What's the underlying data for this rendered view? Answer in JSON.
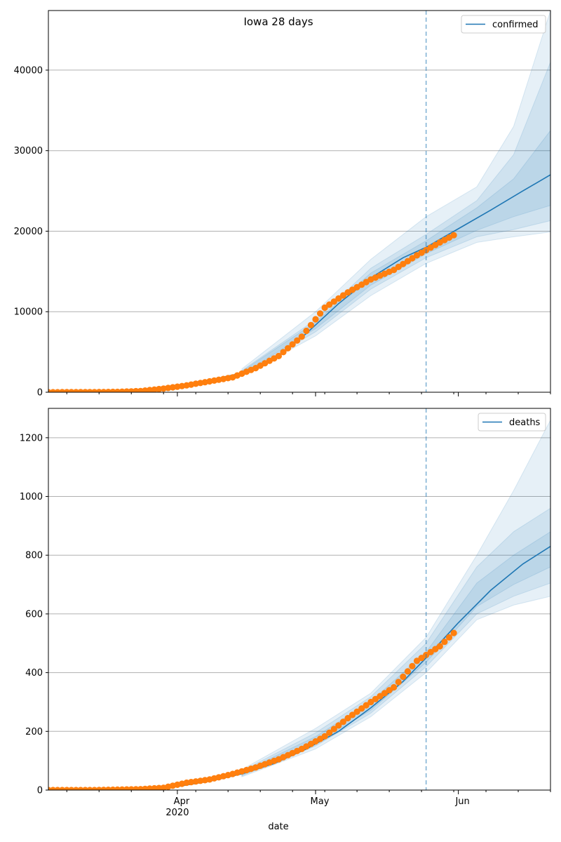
{
  "title": "Iowa 28 days",
  "colors": {
    "line": "#1f77b4",
    "observed": "#ff7f0e",
    "band": "#1f77b4",
    "cutoff": "#1f77b4",
    "grid": "#b0b0b0"
  },
  "chart_data": [
    {
      "type": "line",
      "title": "Iowa 28 days",
      "xlabel": "",
      "ylabel": "",
      "x_range": [
        "2020-03-04",
        "2020-06-21"
      ],
      "ylim": [
        0,
        47400
      ],
      "y_ticks": [
        0,
        10000,
        20000,
        30000,
        40000
      ],
      "y_tick_labels": [
        "0",
        "10000",
        "20000",
        "30000",
        "40000"
      ],
      "x_tick_labels": [],
      "grid": "horizontal",
      "legend": {
        "placement": "top-right",
        "entries": [
          "confirmed"
        ]
      },
      "cutoff_date": "2020-05-25",
      "series": [
        {
          "name": "confirmed",
          "kind": "fitted-line",
          "x": [
            "2020-03-05",
            "2020-03-15",
            "2020-03-25",
            "2020-04-01",
            "2020-04-08",
            "2020-04-15",
            "2020-04-22",
            "2020-04-29",
            "2020-05-06",
            "2020-05-13",
            "2020-05-20",
            "2020-05-25",
            "2020-06-01",
            "2020-06-08",
            "2020-06-15",
            "2020-06-21"
          ],
          "y": [
            0,
            50,
            300,
            750,
            1500,
            2400,
            4000,
            7300,
            11000,
            14200,
            16700,
            18000,
            20300,
            22600,
            25000,
            27000
          ]
        },
        {
          "kind": "observed",
          "x": [
            "2020-03-04",
            "2020-03-09",
            "2020-03-14",
            "2020-03-19",
            "2020-03-24",
            "2020-03-29",
            "2020-04-03",
            "2020-04-08",
            "2020-04-13",
            "2020-04-18",
            "2020-04-23",
            "2020-04-28",
            "2020-05-03",
            "2020-05-08",
            "2020-05-13",
            "2020-05-18",
            "2020-05-23",
            "2020-05-28",
            "2020-05-31"
          ],
          "y": [
            0,
            10,
            20,
            45,
            150,
            450,
            850,
            1350,
            1850,
            3000,
            4500,
            6900,
            10500,
            12400,
            14000,
            15200,
            17000,
            18600,
            19500
          ]
        }
      ],
      "uncertainty_bands": [
        {
          "x": [
            "2020-04-15",
            "2020-05-01",
            "2020-05-13",
            "2020-05-25",
            "2020-06-05",
            "2020-06-13",
            "2020-06-21"
          ],
          "low": [
            2000,
            7000,
            12000,
            16000,
            18600,
            19300,
            19900
          ],
          "high": [
            2900,
            10000,
            16500,
            21800,
            25500,
            33000,
            47400
          ]
        },
        {
          "x": [
            "2020-04-15",
            "2020-05-01",
            "2020-05-13",
            "2020-05-25",
            "2020-06-05",
            "2020-06-13",
            "2020-06-21"
          ],
          "low": [
            2150,
            7500,
            12800,
            16700,
            19300,
            20200,
            21300
          ],
          "high": [
            2700,
            9000,
            15400,
            19600,
            23800,
            29500,
            41000
          ]
        },
        {
          "x": [
            "2020-04-15",
            "2020-05-01",
            "2020-05-13",
            "2020-05-25",
            "2020-06-05",
            "2020-06-13",
            "2020-06-21"
          ],
          "low": [
            2250,
            7900,
            13300,
            17200,
            20100,
            21800,
            23200
          ],
          "high": [
            2600,
            8700,
            14800,
            18800,
            22900,
            26500,
            32500
          ]
        }
      ]
    },
    {
      "type": "line",
      "xlabel": "date",
      "ylabel": "",
      "x_range": [
        "2020-03-04",
        "2020-06-21"
      ],
      "ylim": [
        0,
        1300
      ],
      "y_ticks": [
        0,
        200,
        400,
        600,
        800,
        1000,
        1200
      ],
      "y_tick_labels": [
        "0",
        "200",
        "400",
        "600",
        "800",
        "1000",
        "1200"
      ],
      "x_ticks": [
        "2020-04-01",
        "2020-05-01",
        "2020-06-01"
      ],
      "x_tick_labels": [
        "Apr",
        "May",
        "Jun"
      ],
      "x_year_label": "2020",
      "grid": "horizontal",
      "legend": {
        "placement": "top-right",
        "entries": [
          "deaths"
        ]
      },
      "cutoff_date": "2020-05-25",
      "series": [
        {
          "name": "deaths",
          "kind": "fitted-line",
          "x": [
            "2020-03-05",
            "2020-03-20",
            "2020-04-01",
            "2020-04-08",
            "2020-04-15",
            "2020-04-22",
            "2020-04-29",
            "2020-05-06",
            "2020-05-13",
            "2020-05-20",
            "2020-05-25",
            "2020-06-01",
            "2020-06-08",
            "2020-06-15",
            "2020-06-21"
          ],
          "y": [
            0,
            1,
            12,
            30,
            55,
            90,
            140,
            200,
            280,
            370,
            450,
            570,
            680,
            770,
            830
          ]
        },
        {
          "kind": "observed",
          "x": [
            "2020-03-04",
            "2020-03-14",
            "2020-03-24",
            "2020-03-29",
            "2020-04-03",
            "2020-04-08",
            "2020-04-13",
            "2020-04-18",
            "2020-04-23",
            "2020-04-28",
            "2020-05-03",
            "2020-05-08",
            "2020-05-13",
            "2020-05-18",
            "2020-05-23",
            "2020-05-28",
            "2020-05-31"
          ],
          "y": [
            0,
            0,
            3,
            8,
            25,
            36,
            55,
            77,
            105,
            140,
            183,
            245,
            300,
            350,
            440,
            490,
            535
          ]
        }
      ],
      "uncertainty_bands": [
        {
          "x": [
            "2020-04-15",
            "2020-05-01",
            "2020-05-13",
            "2020-05-25",
            "2020-06-05",
            "2020-06-13",
            "2020-06-21"
          ],
          "low": [
            45,
            140,
            250,
            400,
            580,
            630,
            660
          ],
          "high": [
            70,
            210,
            330,
            520,
            800,
            1020,
            1260
          ]
        },
        {
          "x": [
            "2020-04-15",
            "2020-05-01",
            "2020-05-13",
            "2020-05-25",
            "2020-06-05",
            "2020-06-13",
            "2020-06-21"
          ],
          "low": [
            48,
            150,
            262,
            420,
            600,
            660,
            705
          ],
          "high": [
            65,
            195,
            318,
            500,
            760,
            880,
            960
          ]
        },
        {
          "x": [
            "2020-04-15",
            "2020-05-01",
            "2020-05-13",
            "2020-05-25",
            "2020-06-05",
            "2020-06-13",
            "2020-06-21"
          ],
          "low": [
            51,
            160,
            272,
            435,
            625,
            700,
            760
          ],
          "high": [
            61,
            182,
            302,
            470,
            705,
            800,
            880
          ]
        }
      ]
    }
  ]
}
